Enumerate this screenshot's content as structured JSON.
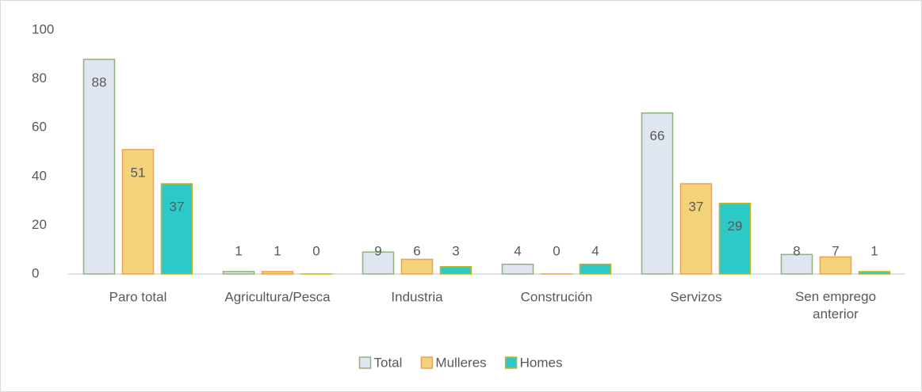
{
  "chart_data": {
    "type": "bar",
    "categories": [
      "Paro total",
      "Agricultura/Pesca",
      "Industria",
      "Construción",
      "Servizos",
      "Sen emprego anterior"
    ],
    "series": [
      {
        "name": "Total",
        "color": "#dfe6ef",
        "edge": "#92b07a",
        "values": [
          88,
          1,
          9,
          4,
          66,
          8
        ]
      },
      {
        "name": "Mulleres",
        "color": "#f4d27a",
        "edge": "#eba24a",
        "values": [
          51,
          1,
          6,
          0,
          37,
          7
        ]
      },
      {
        "name": "Homes",
        "color": "#2cc9c9",
        "edge": "#c9b21e",
        "values": [
          37,
          0,
          3,
          4,
          29,
          1
        ]
      }
    ],
    "ylim": [
      0,
      100
    ],
    "yticks": [
      0,
      20,
      40,
      60,
      80,
      100
    ],
    "grid": false,
    "legend": "bottom"
  }
}
